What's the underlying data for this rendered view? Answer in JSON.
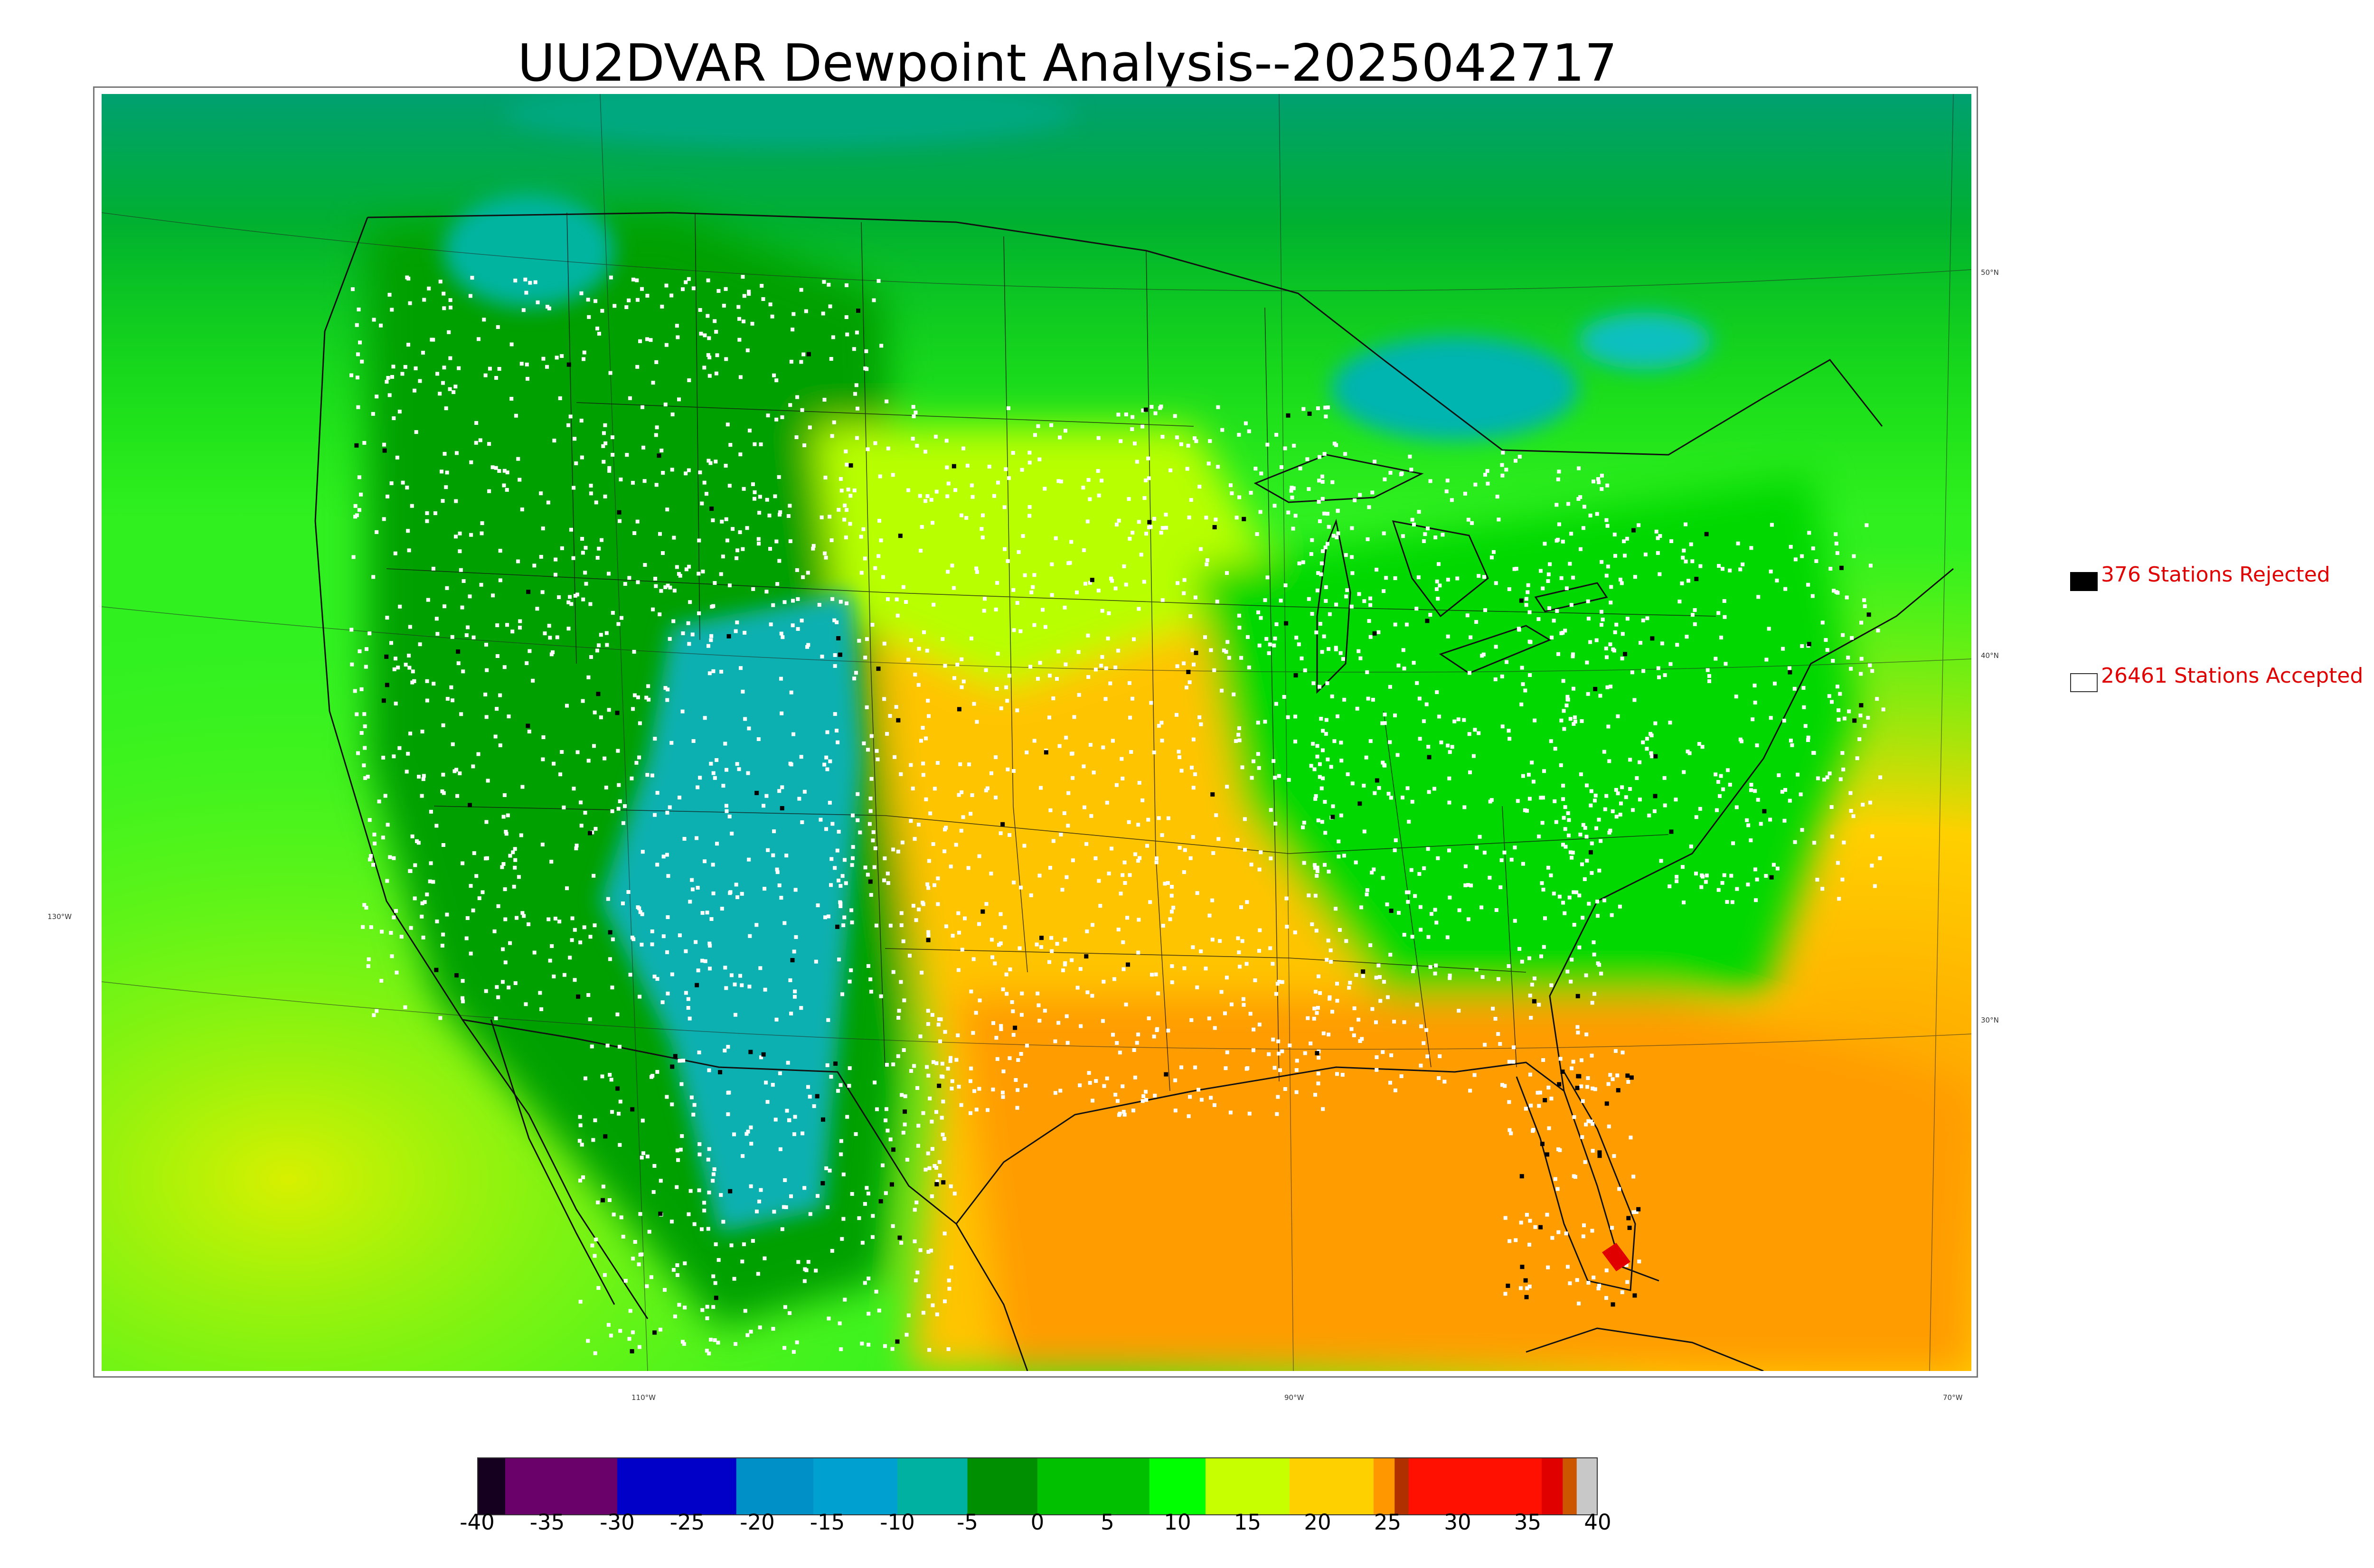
{
  "title": "UU2DVAR Dewpoint Analysis--2025042717",
  "latitude_labels": [
    "50°N",
    "40°N",
    "30°N",
    "130°W"
  ],
  "longitude_labels": [
    "110°W",
    "90°W",
    "70°W"
  ],
  "legend": {
    "rejected": {
      "count": "376",
      "label": "376 Stations Rejected",
      "color": "#000000"
    },
    "accepted": {
      "count": "26461",
      "label": "26461 Stations Accepted",
      "color": "#ffffff"
    }
  },
  "colorbar": {
    "min": -40,
    "max": 40,
    "tick_labels": [
      "-40",
      "-35",
      "-30",
      "-25",
      "-20",
      "-15",
      "-10",
      "-5",
      "0",
      "5",
      "10",
      "15",
      "20",
      "25",
      "30",
      "35",
      "40"
    ],
    "stops": [
      {
        "value": -40,
        "color": "#150020"
      },
      {
        "value": -38,
        "color": "#6a006a"
      },
      {
        "value": -30,
        "color": "#0000c8"
      },
      {
        "value": -21.5,
        "color": "#0090c8"
      },
      {
        "value": -16,
        "color": "#00a0d0"
      },
      {
        "value": -10,
        "color": "#00b0a0"
      },
      {
        "value": -5,
        "color": "#008f00"
      },
      {
        "value": 0,
        "color": "#00c000"
      },
      {
        "value": 8,
        "color": "#00ff00"
      },
      {
        "value": 12,
        "color": "#c8ff00"
      },
      {
        "value": 18,
        "color": "#ffd000"
      },
      {
        "value": 24,
        "color": "#ff9800"
      },
      {
        "value": 25.5,
        "color": "#b03000"
      },
      {
        "value": 26.5,
        "color": "#ff1000"
      },
      {
        "value": 36,
        "color": "#e00000"
      },
      {
        "value": 37.5,
        "color": "#cc5500"
      },
      {
        "value": 38.5,
        "color": "#c8c8c8"
      }
    ]
  },
  "colors": {
    "frame": "#777777",
    "state_lines": "#111111",
    "accepted_marker": "#ffffff",
    "rejected_marker": "#000000"
  }
}
